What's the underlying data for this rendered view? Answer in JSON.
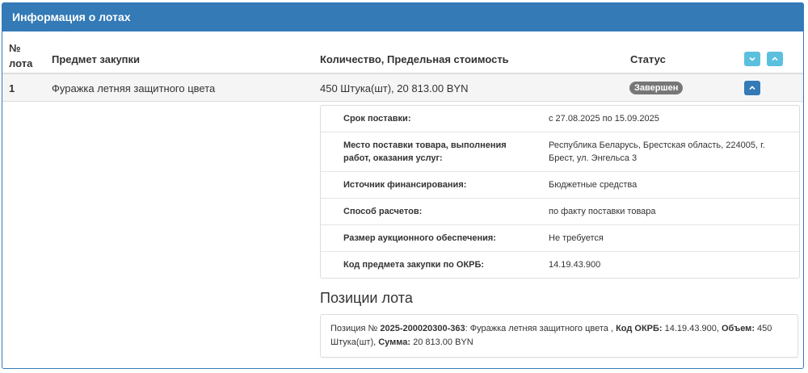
{
  "panel": {
    "title": "Информация о лотах"
  },
  "table": {
    "headers": {
      "number_line1": "№",
      "number_line2": "лота",
      "subject": "Предмет закупки",
      "quantity": "Количество, Предельная стоимость",
      "status": "Статус"
    },
    "rows": [
      {
        "number": "1",
        "subject": "Фуражка летняя защитного цвета",
        "quantity": "450 Штука(шт), 20 813.00 BYN",
        "status": "Завершен"
      }
    ]
  },
  "colors": {
    "primary": "#337ab7",
    "info": "#5bc0de",
    "badge": "#777777"
  },
  "icons": {
    "expand_all": "chevron-down-icon",
    "collapse_all": "chevron-up-icon",
    "row_toggle": "chevron-up-icon"
  },
  "details": [
    {
      "label": "Срок поставки:",
      "value": "с 27.08.2025 по 15.09.2025"
    },
    {
      "label": "Место поставки товара, выполнения работ, оказания услуг:",
      "value": "Республика Беларусь, Брестская область, 224005, г. Брест, ул. Энгельса 3"
    },
    {
      "label": "Источник финансирования:",
      "value": "Бюджетные средства"
    },
    {
      "label": "Способ расчетов:",
      "value": "по факту поставки товара"
    },
    {
      "label": "Размер аукционного обеспечения:",
      "value": "Не требуется"
    },
    {
      "label": "Код предмета закупки по ОКРБ:",
      "value": "14.19.43.900"
    }
  ],
  "positions": {
    "title": "Позиции лота",
    "items": [
      {
        "prefix": "Позиция № ",
        "number": "2025-200020300-363",
        "name": ": Фуражка летняя защитного цвета , ",
        "okrb_label": "Код ОКРБ:",
        "okrb": " 14.19.43.900, ",
        "volume_label": "Объем:",
        "volume": " 450 Штука(шт), ",
        "sum_label": "Сумма:",
        "sum": " 20 813.00 BYN"
      }
    ]
  }
}
